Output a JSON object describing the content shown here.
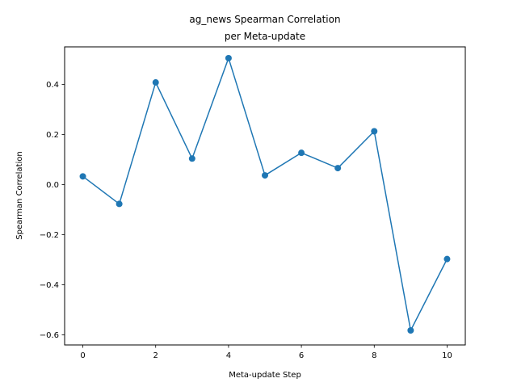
{
  "chart_data": {
    "type": "line",
    "title_lines": [
      "ag_news Spearman Correlation",
      "per Meta-update"
    ],
    "xlabel": "Meta-update Step",
    "ylabel": "Spearman Correlation",
    "x": [
      0,
      1,
      2,
      3,
      4,
      5,
      6,
      7,
      8,
      9,
      10
    ],
    "series": [
      {
        "values": [
          0.033,
          -0.077,
          0.408,
          0.104,
          0.505,
          0.037,
          0.127,
          0.066,
          0.213,
          -0.582,
          -0.297
        ],
        "color": "#1f77b4",
        "marker": "circle"
      }
    ],
    "xlim": [
      -0.5,
      10.5
    ],
    "ylim": [
      -0.64,
      0.55
    ],
    "x_ticks": [
      0,
      2,
      4,
      6,
      8,
      10
    ],
    "x_tick_labels": [
      "0",
      "2",
      "4",
      "6",
      "8",
      "10"
    ],
    "y_ticks": [
      -0.6,
      -0.4,
      -0.2,
      0.0,
      0.2,
      0.4
    ],
    "y_tick_labels": [
      "−0.6",
      "−0.4",
      "−0.2",
      "0.0",
      "0.2",
      "0.4"
    ],
    "grid": false,
    "legend": "none"
  }
}
